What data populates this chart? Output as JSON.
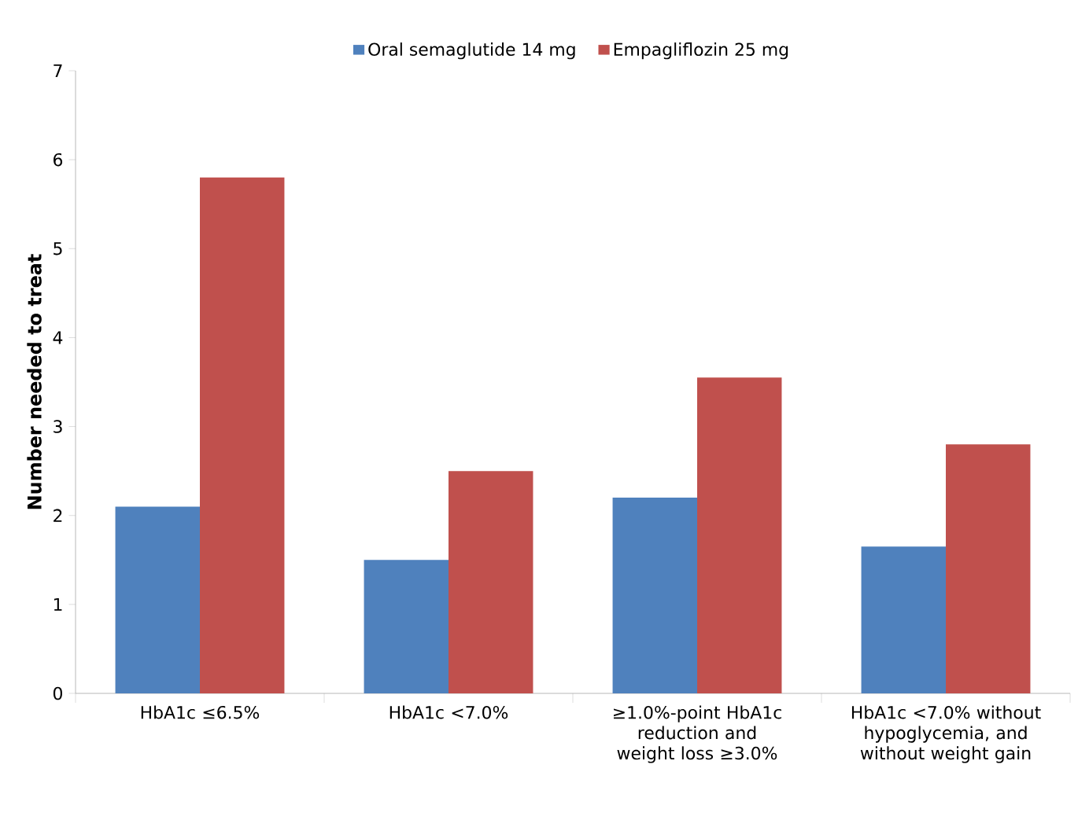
{
  "chart_data": {
    "type": "bar",
    "ylabel": "Number needed to treat",
    "categories": [
      "HbA1c ≤6.5%",
      "HbA1c <7.0%",
      "≥1.0%-point HbA1c reduction and weight loss ≥3.0%",
      "HbA1c <7.0% without hypoglycemia, and without weight gain"
    ],
    "series": [
      {
        "name": "Oral semaglutide 14 mg",
        "color": "#4f81bd",
        "values": [
          2.1,
          1.5,
          2.2,
          1.65
        ]
      },
      {
        "name": "Empagliflozin 25 mg",
        "color": "#c0504d",
        "values": [
          5.8,
          2.5,
          3.55,
          2.8
        ]
      }
    ],
    "ylim": [
      0,
      7
    ],
    "yticks": [
      0,
      1,
      2,
      3,
      4,
      5,
      6,
      7
    ],
    "grid": false,
    "legend": "top"
  }
}
